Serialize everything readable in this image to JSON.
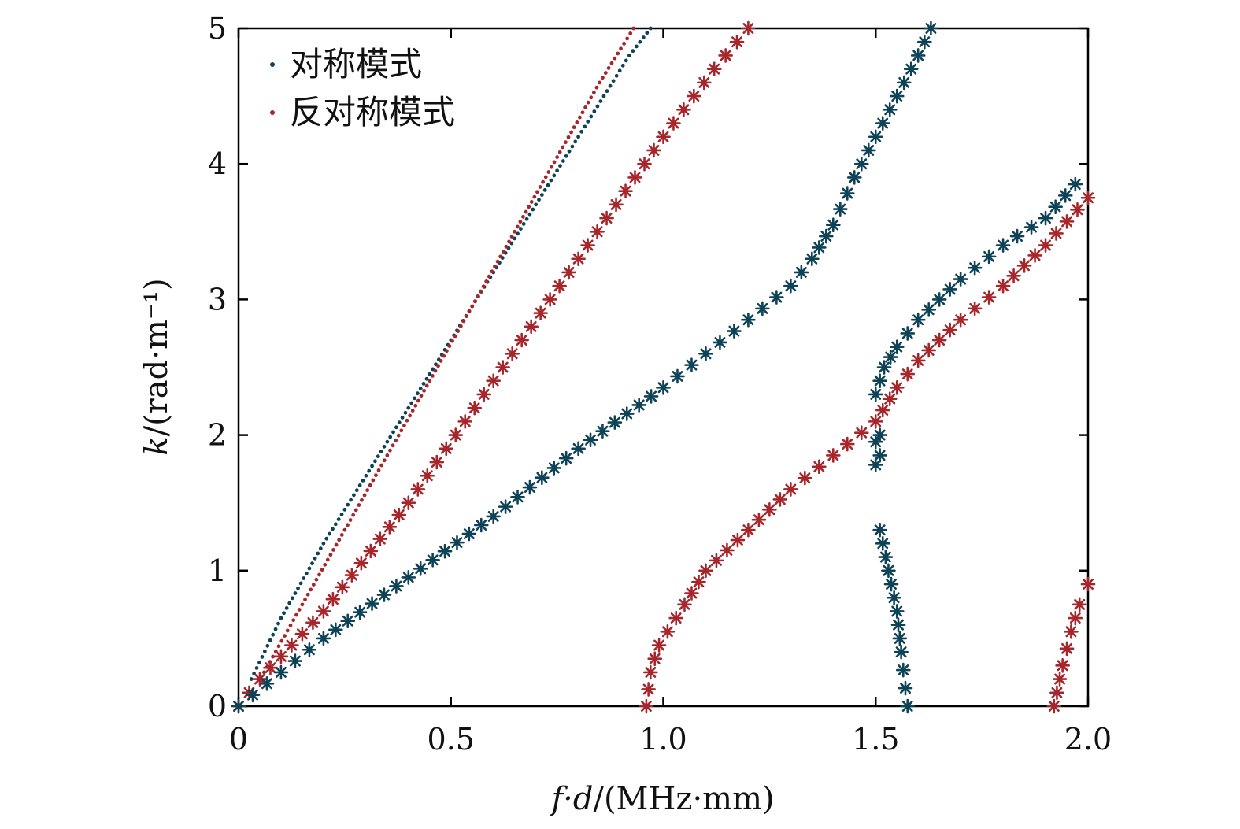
{
  "colors": {
    "symmetric": "#0e4357",
    "antisymmetric": "#a6262b"
  },
  "legend": {
    "placement": "top-left",
    "symmetric": "对称模式",
    "antisymmetric": "反对称模式"
  },
  "chart_data": {
    "type": "scatter",
    "xlabel_var": "f·d",
    "xlabel_unit": "/(MHz·mm)",
    "ylabel_var": "k",
    "ylabel_unit": "/(rad·m⁻¹)",
    "xlim": [
      0,
      2.0
    ],
    "ylim": [
      0,
      5
    ],
    "xticks": [
      "0",
      "0.5",
      "1.0",
      "1.5",
      "2.0"
    ],
    "yticks": [
      "0",
      "1",
      "2",
      "3",
      "4",
      "5"
    ],
    "grid": false,
    "series": [
      {
        "mode": "symmetric",
        "marker": "dot",
        "points": [
          [
            0.03,
            0.2
          ],
          [
            0.1,
            0.65
          ],
          [
            0.2,
            1.2
          ],
          [
            0.3,
            1.7
          ],
          [
            0.4,
            2.2
          ],
          [
            0.5,
            2.7
          ],
          [
            0.6,
            3.2
          ],
          [
            0.7,
            3.7
          ],
          [
            0.8,
            4.2
          ],
          [
            0.86,
            4.5
          ],
          [
            0.92,
            4.8
          ],
          [
            0.97,
            5.0
          ]
        ]
      },
      {
        "mode": "antisymmetric",
        "marker": "asterisk",
        "points": [
          [
            0.0,
            0.0
          ],
          [
            0.05,
            0.2
          ],
          [
            0.2,
            0.7
          ],
          [
            0.4,
            1.5
          ],
          [
            0.6,
            2.4
          ],
          [
            0.8,
            3.3
          ],
          [
            1.0,
            4.2
          ],
          [
            1.12,
            4.7
          ],
          [
            1.2,
            5.0
          ]
        ]
      },
      {
        "mode": "antisymmetric",
        "marker": "dot",
        "points": [
          [
            0.06,
            0.25
          ],
          [
            0.15,
            0.75
          ],
          [
            0.25,
            1.3
          ],
          [
            0.35,
            1.85
          ],
          [
            0.45,
            2.4
          ],
          [
            0.55,
            2.95
          ],
          [
            0.65,
            3.5
          ],
          [
            0.75,
            4.05
          ],
          [
            0.85,
            4.6
          ],
          [
            0.9,
            4.85
          ],
          [
            0.93,
            5.0
          ]
        ]
      },
      {
        "mode": "symmetric",
        "marker": "asterisk",
        "points": [
          [
            0.0,
            0.0
          ],
          [
            0.1,
            0.25
          ],
          [
            0.2,
            0.5
          ],
          [
            0.4,
            0.95
          ],
          [
            0.6,
            1.4
          ],
          [
            0.8,
            1.9
          ],
          [
            1.0,
            2.35
          ],
          [
            1.1,
            2.6
          ],
          [
            1.2,
            2.85
          ],
          [
            1.3,
            3.1
          ],
          [
            1.35,
            3.3
          ],
          [
            1.4,
            3.55
          ],
          [
            1.45,
            3.9
          ],
          [
            1.5,
            4.2
          ],
          [
            1.55,
            4.5
          ],
          [
            1.6,
            4.8
          ],
          [
            1.63,
            5.0
          ]
        ]
      },
      {
        "mode": "symmetric",
        "marker": "asterisk",
        "points": [
          [
            1.5,
            2.3
          ],
          [
            1.52,
            2.5
          ],
          [
            1.55,
            2.65
          ],
          [
            1.6,
            2.85
          ],
          [
            1.7,
            3.15
          ],
          [
            1.8,
            3.4
          ],
          [
            1.9,
            3.6
          ],
          [
            1.97,
            3.85
          ]
        ]
      },
      {
        "mode": "symmetric",
        "marker": "asterisk",
        "points": [
          [
            1.5,
            1.78
          ],
          [
            1.51,
            1.85
          ],
          [
            1.5,
            1.95
          ],
          [
            1.51,
            2.0
          ]
        ]
      },
      {
        "mode": "symmetric",
        "marker": "asterisk",
        "points": [
          [
            1.51,
            1.3
          ],
          [
            1.53,
            1.0
          ],
          [
            1.55,
            0.7
          ],
          [
            1.56,
            0.4
          ],
          [
            1.575,
            0.0
          ]
        ]
      },
      {
        "mode": "antisymmetric",
        "marker": "asterisk",
        "points": [
          [
            0.96,
            0.0
          ],
          [
            0.97,
            0.25
          ],
          [
            0.99,
            0.45
          ],
          [
            1.05,
            0.75
          ],
          [
            1.1,
            1.0
          ],
          [
            1.2,
            1.3
          ],
          [
            1.3,
            1.6
          ],
          [
            1.4,
            1.85
          ],
          [
            1.5,
            2.1
          ],
          [
            1.55,
            2.35
          ],
          [
            1.6,
            2.55
          ],
          [
            1.7,
            2.85
          ],
          [
            1.8,
            3.1
          ],
          [
            1.9,
            3.4
          ],
          [
            2.0,
            3.75
          ]
        ]
      },
      {
        "mode": "antisymmetric",
        "marker": "asterisk",
        "points": [
          [
            1.92,
            0.0
          ],
          [
            1.94,
            0.3
          ],
          [
            1.96,
            0.55
          ],
          [
            1.98,
            0.75
          ],
          [
            2.0,
            0.9
          ]
        ]
      }
    ]
  }
}
